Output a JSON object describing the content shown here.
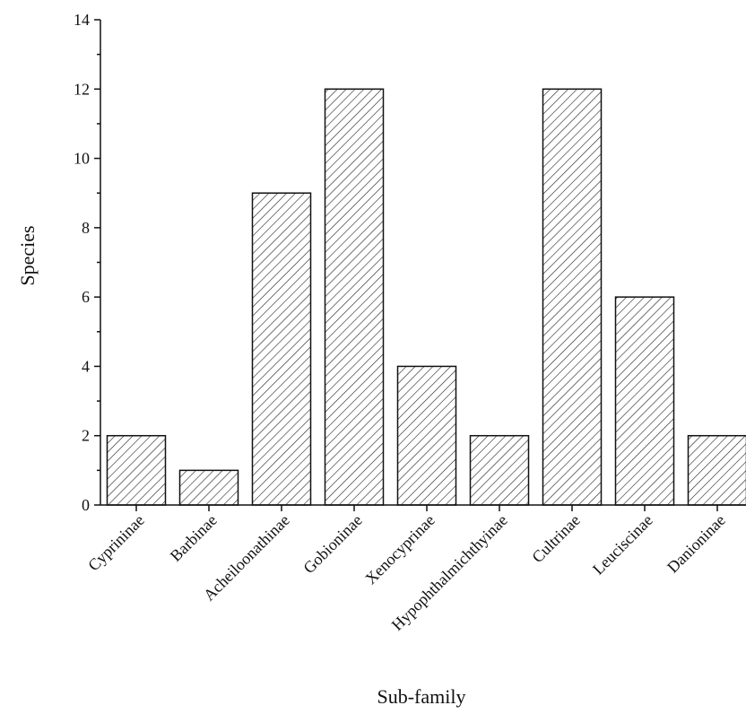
{
  "chart_data": {
    "type": "bar",
    "categories": [
      "Cyprininae",
      "Barbinae",
      "Acheiloonathinae",
      "Gobioninae",
      "Xenocyprinae",
      "Hypophthalmichthyinae",
      "Cultrinae",
      "Leuciscinae",
      "Danioninae"
    ],
    "values": [
      2,
      1,
      9,
      12,
      4,
      2,
      12,
      6,
      2
    ],
    "title": "",
    "xlabel": "Sub-family",
    "ylabel": "Species",
    "ylim": [
      0,
      14
    ],
    "yticks": [
      "0",
      "2",
      "4",
      "6",
      "8",
      "10",
      "12",
      "14"
    ],
    "grid": false,
    "legend": "none",
    "bar_fill": "diagonal-hatch",
    "colors": {
      "bar_fill": "#ffffff",
      "bar_stroke": "#111111",
      "hatch": "#222222",
      "axis": "#111111"
    }
  }
}
